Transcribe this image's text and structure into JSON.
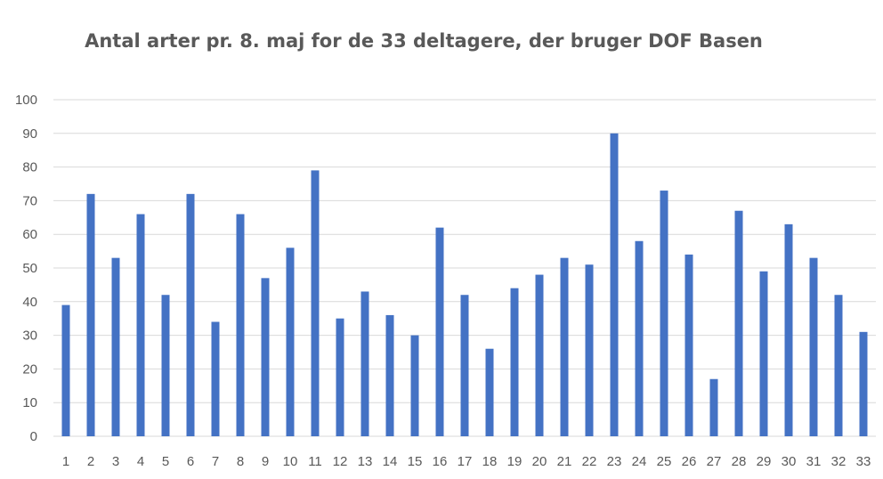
{
  "chart_data": {
    "type": "bar",
    "title": "Antal arter pr. 8. maj for de 33 deltagere, der bruger DOF Basen",
    "xlabel": "",
    "ylabel": "",
    "categories": [
      "1",
      "2",
      "3",
      "4",
      "5",
      "6",
      "7",
      "8",
      "9",
      "10",
      "11",
      "12",
      "13",
      "14",
      "15",
      "16",
      "17",
      "18",
      "19",
      "20",
      "21",
      "22",
      "23",
      "24",
      "25",
      "26",
      "27",
      "28",
      "29",
      "30",
      "31",
      "32",
      "33"
    ],
    "values": [
      39,
      72,
      53,
      66,
      42,
      72,
      34,
      66,
      47,
      56,
      79,
      35,
      43,
      36,
      30,
      62,
      42,
      26,
      44,
      48,
      53,
      51,
      90,
      58,
      73,
      54,
      17,
      67,
      49,
      63,
      53,
      42,
      31
    ],
    "ylim": [
      0,
      100
    ],
    "yticks": [
      "0",
      "10",
      "20",
      "30",
      "40",
      "50",
      "60",
      "70",
      "80",
      "90",
      "100"
    ],
    "grid": true,
    "legend": "none",
    "bar_color": "#4472C4",
    "grid_color": "#D9D9D9"
  }
}
